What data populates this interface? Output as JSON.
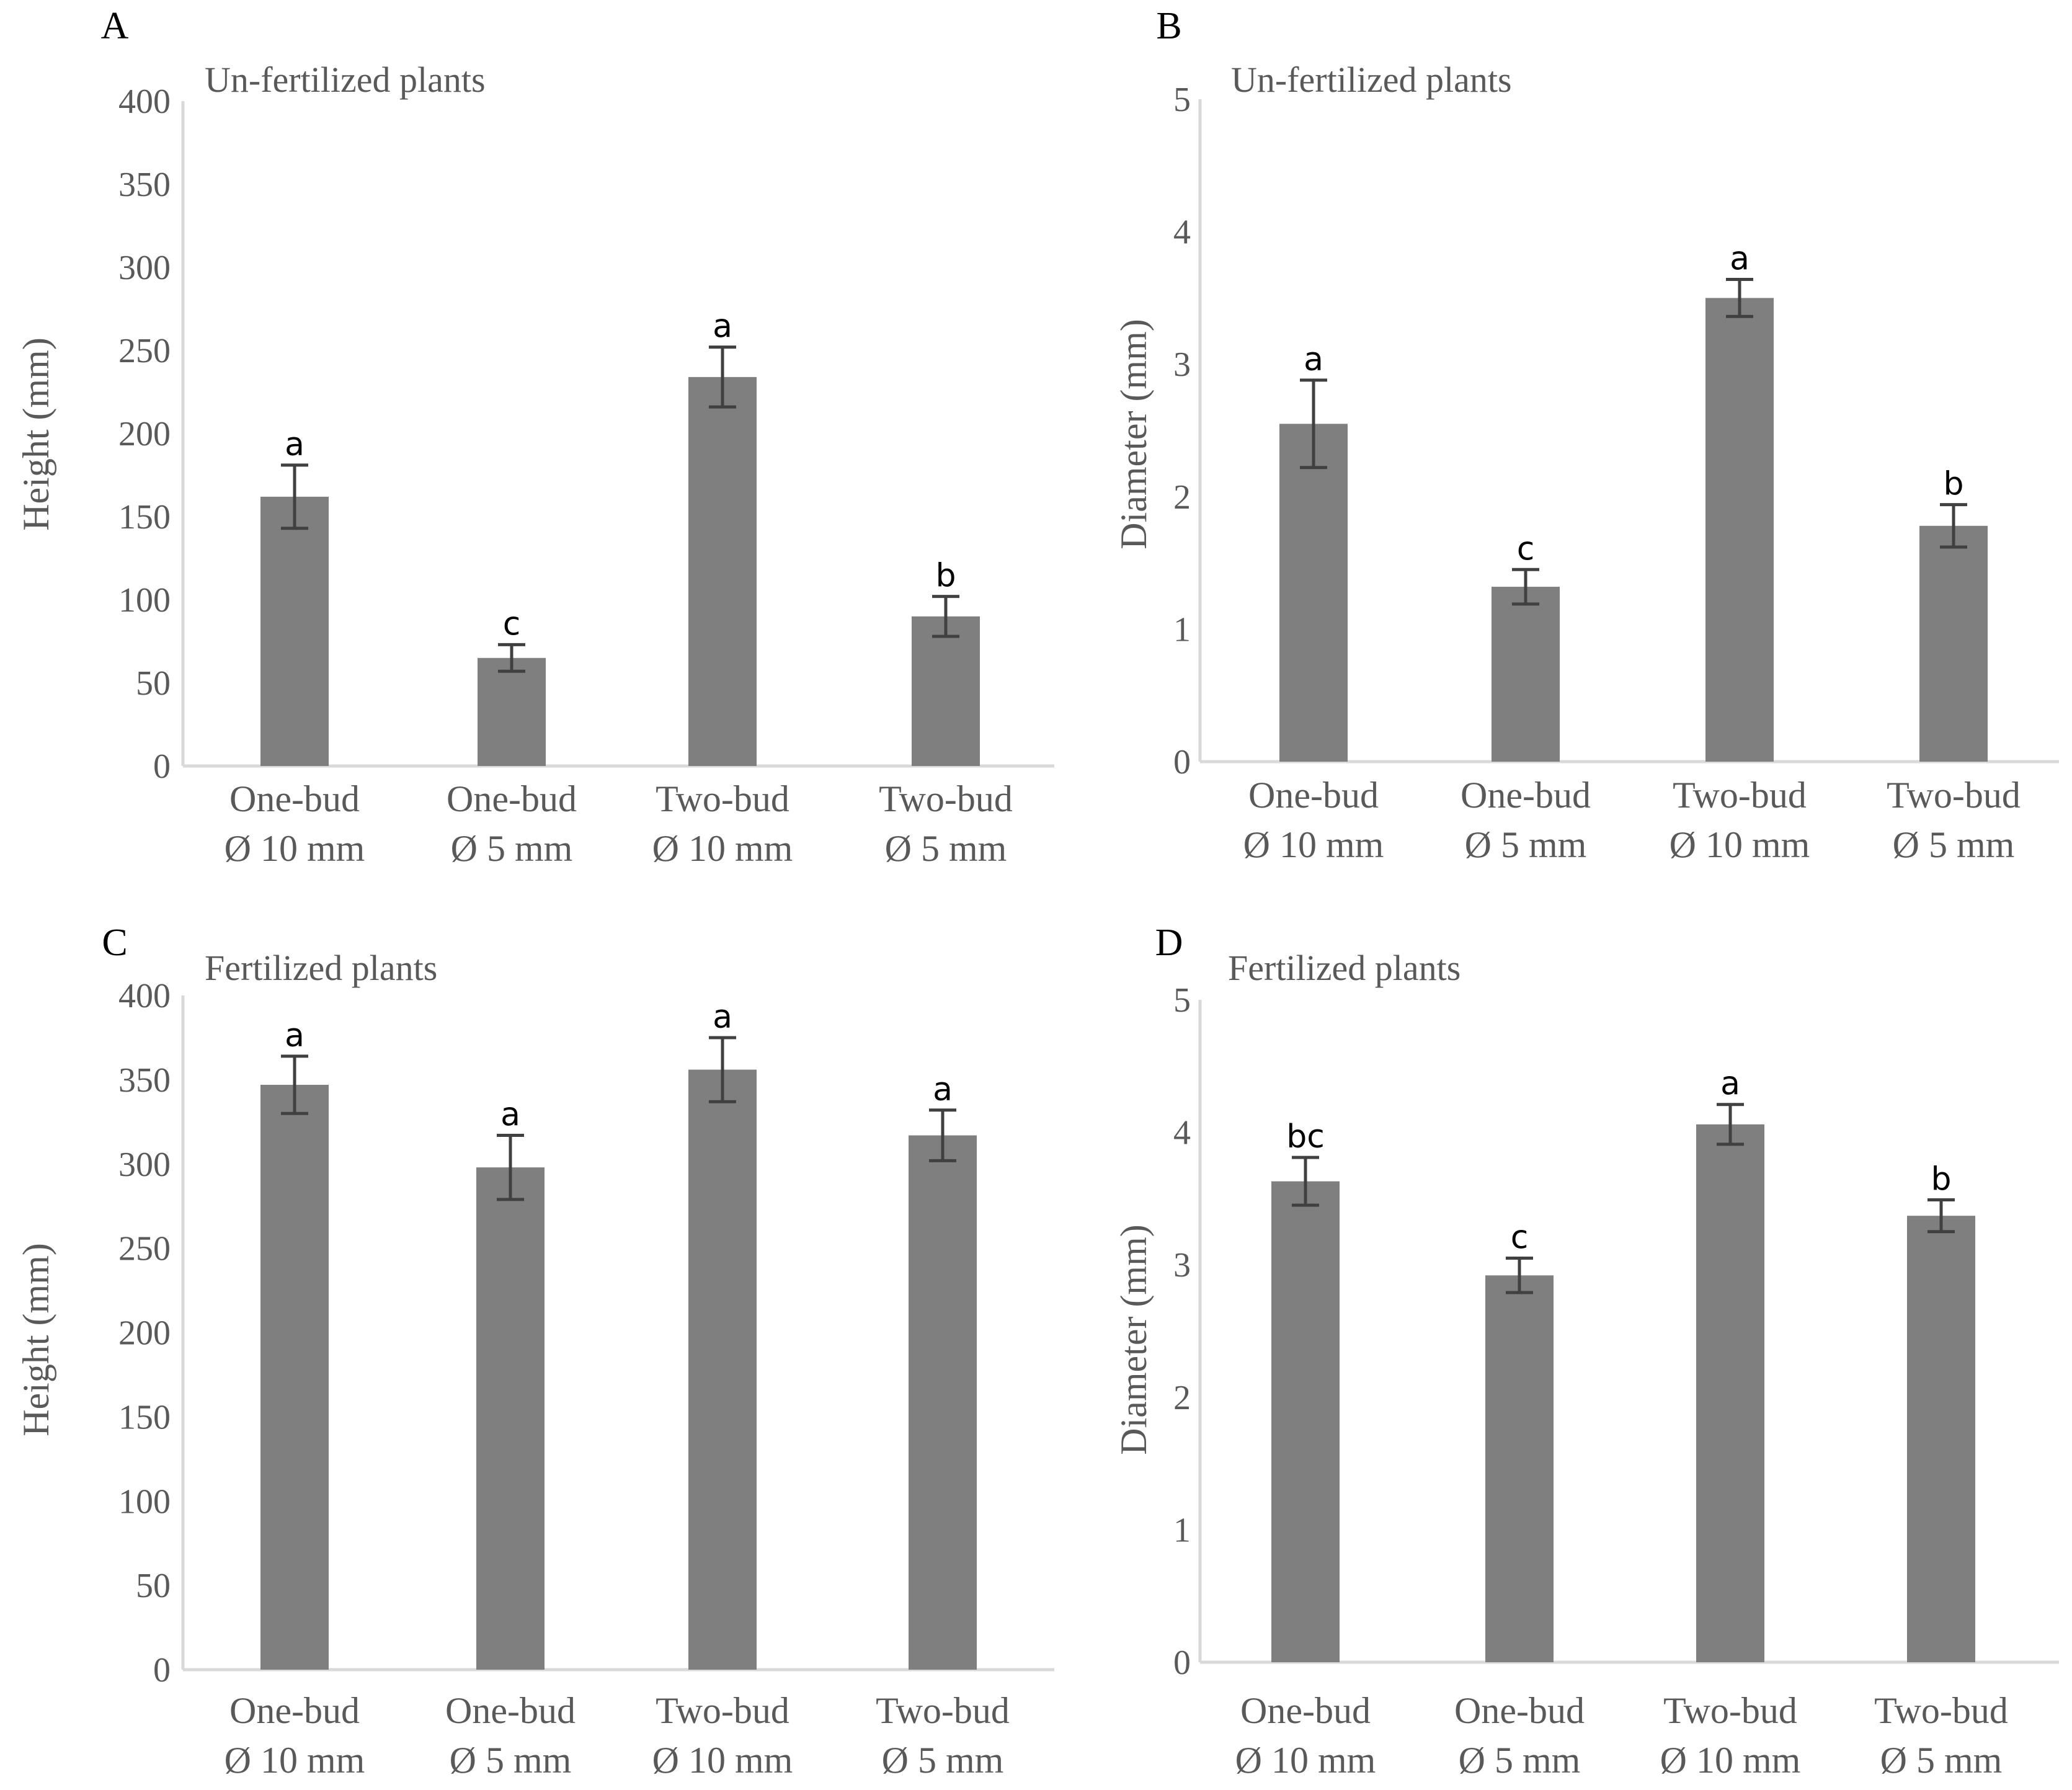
{
  "figure": {
    "bar_color": "#7f7f7f",
    "error_color": "#404040",
    "axis_color": "#d9d9d9",
    "text_color": "#595959"
  },
  "chart_data": [
    {
      "panel": "A",
      "type": "bar",
      "title": "Un-fertilized plants",
      "ylabel": "Height (mm)",
      "xlabel": "",
      "ylim": [
        0,
        400
      ],
      "yticks": [
        0,
        50,
        100,
        150,
        200,
        250,
        300,
        350,
        400
      ],
      "categories": [
        [
          "One-bud",
          "Ø 10 mm"
        ],
        [
          "One-bud",
          "Ø 5 mm"
        ],
        [
          "Two-bud",
          "Ø 10 mm"
        ],
        [
          "Two-bud",
          "Ø 5 mm"
        ]
      ],
      "values": [
        162,
        65,
        234,
        90
      ],
      "errors": [
        19,
        8,
        18,
        12
      ],
      "significance": [
        "a",
        "c",
        "a",
        "b"
      ]
    },
    {
      "panel": "B",
      "type": "bar",
      "title": "Un-fertilized plants",
      "ylabel": "Diameter (mm)",
      "xlabel": "",
      "ylim": [
        0,
        5
      ],
      "yticks": [
        0,
        1,
        2,
        3,
        4,
        5
      ],
      "categories": [
        [
          "One-bud",
          "Ø 10 mm"
        ],
        [
          "One-bud",
          "Ø 5 mm"
        ],
        [
          "Two-bud",
          "Ø 10 mm"
        ],
        [
          "Two-bud",
          "Ø 5 mm"
        ]
      ],
      "values": [
        2.55,
        1.32,
        3.5,
        1.78
      ],
      "errors": [
        0.33,
        0.13,
        0.14,
        0.16
      ],
      "significance": [
        "a",
        "c",
        "a",
        "b"
      ]
    },
    {
      "panel": "C",
      "type": "bar",
      "title": "Fertilized plants",
      "ylabel": "Height (mm)",
      "xlabel": "",
      "ylim": [
        0,
        400
      ],
      "yticks": [
        0,
        50,
        100,
        150,
        200,
        250,
        300,
        350,
        400
      ],
      "categories": [
        [
          "One-bud",
          "Ø 10 mm"
        ],
        [
          "One-bud",
          "Ø 5 mm"
        ],
        [
          "Two-bud",
          "Ø 10 mm"
        ],
        [
          "Two-bud",
          "Ø 5 mm"
        ]
      ],
      "values": [
        347,
        298,
        356,
        317
      ],
      "errors": [
        17,
        19,
        19,
        15
      ],
      "significance": [
        "a",
        "a",
        "a",
        "a"
      ]
    },
    {
      "panel": "D",
      "type": "bar",
      "title": "Fertilized plants",
      "ylabel": "Diameter (mm)",
      "xlabel": "",
      "ylim": [
        0,
        5
      ],
      "yticks": [
        0,
        1,
        2,
        3,
        4,
        5
      ],
      "categories": [
        [
          "One-bud",
          "Ø 10 mm"
        ],
        [
          "One-bud",
          "Ø 5 mm"
        ],
        [
          "Two-bud",
          "Ø 10 mm"
        ],
        [
          "Two-bud",
          "Ø 5 mm"
        ]
      ],
      "values": [
        3.63,
        2.92,
        4.06,
        3.37
      ],
      "errors": [
        0.18,
        0.13,
        0.15,
        0.12
      ],
      "significance": [
        "bc",
        "c",
        "a",
        "b"
      ]
    }
  ]
}
